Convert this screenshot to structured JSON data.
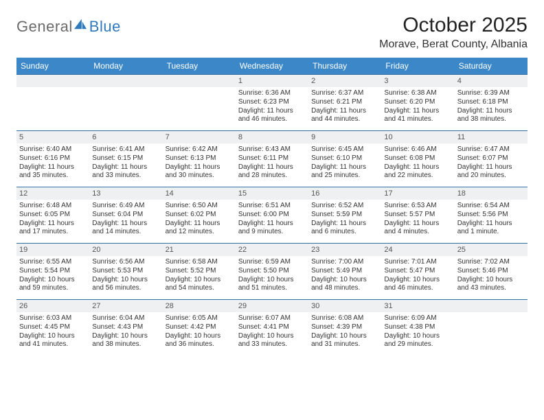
{
  "brand": {
    "part1": "General",
    "part2": "Blue"
  },
  "title": "October 2025",
  "location": "Morave, Berat County, Albania",
  "colors": {
    "header_bg": "#3b87c8",
    "header_text": "#ffffff",
    "daynum_bg": "#eef0f2",
    "border": "#2f6fa6",
    "logo_gray": "#6a6a6a",
    "logo_blue": "#2f79bd",
    "text": "#333333",
    "background": "#ffffff"
  },
  "typography": {
    "title_fontsize": 30,
    "location_fontsize": 16,
    "dayhead_fontsize": 12,
    "daynum_fontsize": 11,
    "cell_fontsize": 10
  },
  "day_labels": [
    "Sunday",
    "Monday",
    "Tuesday",
    "Wednesday",
    "Thursday",
    "Friday",
    "Saturday"
  ],
  "weeks": [
    [
      {
        "num": "",
        "sunrise": "",
        "sunset": "",
        "daylight": ""
      },
      {
        "num": "",
        "sunrise": "",
        "sunset": "",
        "daylight": ""
      },
      {
        "num": "",
        "sunrise": "",
        "sunset": "",
        "daylight": ""
      },
      {
        "num": "1",
        "sunrise": "Sunrise: 6:36 AM",
        "sunset": "Sunset: 6:23 PM",
        "daylight": "Daylight: 11 hours and 46 minutes."
      },
      {
        "num": "2",
        "sunrise": "Sunrise: 6:37 AM",
        "sunset": "Sunset: 6:21 PM",
        "daylight": "Daylight: 11 hours and 44 minutes."
      },
      {
        "num": "3",
        "sunrise": "Sunrise: 6:38 AM",
        "sunset": "Sunset: 6:20 PM",
        "daylight": "Daylight: 11 hours and 41 minutes."
      },
      {
        "num": "4",
        "sunrise": "Sunrise: 6:39 AM",
        "sunset": "Sunset: 6:18 PM",
        "daylight": "Daylight: 11 hours and 38 minutes."
      }
    ],
    [
      {
        "num": "5",
        "sunrise": "Sunrise: 6:40 AM",
        "sunset": "Sunset: 6:16 PM",
        "daylight": "Daylight: 11 hours and 35 minutes."
      },
      {
        "num": "6",
        "sunrise": "Sunrise: 6:41 AM",
        "sunset": "Sunset: 6:15 PM",
        "daylight": "Daylight: 11 hours and 33 minutes."
      },
      {
        "num": "7",
        "sunrise": "Sunrise: 6:42 AM",
        "sunset": "Sunset: 6:13 PM",
        "daylight": "Daylight: 11 hours and 30 minutes."
      },
      {
        "num": "8",
        "sunrise": "Sunrise: 6:43 AM",
        "sunset": "Sunset: 6:11 PM",
        "daylight": "Daylight: 11 hours and 28 minutes."
      },
      {
        "num": "9",
        "sunrise": "Sunrise: 6:45 AM",
        "sunset": "Sunset: 6:10 PM",
        "daylight": "Daylight: 11 hours and 25 minutes."
      },
      {
        "num": "10",
        "sunrise": "Sunrise: 6:46 AM",
        "sunset": "Sunset: 6:08 PM",
        "daylight": "Daylight: 11 hours and 22 minutes."
      },
      {
        "num": "11",
        "sunrise": "Sunrise: 6:47 AM",
        "sunset": "Sunset: 6:07 PM",
        "daylight": "Daylight: 11 hours and 20 minutes."
      }
    ],
    [
      {
        "num": "12",
        "sunrise": "Sunrise: 6:48 AM",
        "sunset": "Sunset: 6:05 PM",
        "daylight": "Daylight: 11 hours and 17 minutes."
      },
      {
        "num": "13",
        "sunrise": "Sunrise: 6:49 AM",
        "sunset": "Sunset: 6:04 PM",
        "daylight": "Daylight: 11 hours and 14 minutes."
      },
      {
        "num": "14",
        "sunrise": "Sunrise: 6:50 AM",
        "sunset": "Sunset: 6:02 PM",
        "daylight": "Daylight: 11 hours and 12 minutes."
      },
      {
        "num": "15",
        "sunrise": "Sunrise: 6:51 AM",
        "sunset": "Sunset: 6:00 PM",
        "daylight": "Daylight: 11 hours and 9 minutes."
      },
      {
        "num": "16",
        "sunrise": "Sunrise: 6:52 AM",
        "sunset": "Sunset: 5:59 PM",
        "daylight": "Daylight: 11 hours and 6 minutes."
      },
      {
        "num": "17",
        "sunrise": "Sunrise: 6:53 AM",
        "sunset": "Sunset: 5:57 PM",
        "daylight": "Daylight: 11 hours and 4 minutes."
      },
      {
        "num": "18",
        "sunrise": "Sunrise: 6:54 AM",
        "sunset": "Sunset: 5:56 PM",
        "daylight": "Daylight: 11 hours and 1 minute."
      }
    ],
    [
      {
        "num": "19",
        "sunrise": "Sunrise: 6:55 AM",
        "sunset": "Sunset: 5:54 PM",
        "daylight": "Daylight: 10 hours and 59 minutes."
      },
      {
        "num": "20",
        "sunrise": "Sunrise: 6:56 AM",
        "sunset": "Sunset: 5:53 PM",
        "daylight": "Daylight: 10 hours and 56 minutes."
      },
      {
        "num": "21",
        "sunrise": "Sunrise: 6:58 AM",
        "sunset": "Sunset: 5:52 PM",
        "daylight": "Daylight: 10 hours and 54 minutes."
      },
      {
        "num": "22",
        "sunrise": "Sunrise: 6:59 AM",
        "sunset": "Sunset: 5:50 PM",
        "daylight": "Daylight: 10 hours and 51 minutes."
      },
      {
        "num": "23",
        "sunrise": "Sunrise: 7:00 AM",
        "sunset": "Sunset: 5:49 PM",
        "daylight": "Daylight: 10 hours and 48 minutes."
      },
      {
        "num": "24",
        "sunrise": "Sunrise: 7:01 AM",
        "sunset": "Sunset: 5:47 PM",
        "daylight": "Daylight: 10 hours and 46 minutes."
      },
      {
        "num": "25",
        "sunrise": "Sunrise: 7:02 AM",
        "sunset": "Sunset: 5:46 PM",
        "daylight": "Daylight: 10 hours and 43 minutes."
      }
    ],
    [
      {
        "num": "26",
        "sunrise": "Sunrise: 6:03 AM",
        "sunset": "Sunset: 4:45 PM",
        "daylight": "Daylight: 10 hours and 41 minutes."
      },
      {
        "num": "27",
        "sunrise": "Sunrise: 6:04 AM",
        "sunset": "Sunset: 4:43 PM",
        "daylight": "Daylight: 10 hours and 38 minutes."
      },
      {
        "num": "28",
        "sunrise": "Sunrise: 6:05 AM",
        "sunset": "Sunset: 4:42 PM",
        "daylight": "Daylight: 10 hours and 36 minutes."
      },
      {
        "num": "29",
        "sunrise": "Sunrise: 6:07 AM",
        "sunset": "Sunset: 4:41 PM",
        "daylight": "Daylight: 10 hours and 33 minutes."
      },
      {
        "num": "30",
        "sunrise": "Sunrise: 6:08 AM",
        "sunset": "Sunset: 4:39 PM",
        "daylight": "Daylight: 10 hours and 31 minutes."
      },
      {
        "num": "31",
        "sunrise": "Sunrise: 6:09 AM",
        "sunset": "Sunset: 4:38 PM",
        "daylight": "Daylight: 10 hours and 29 minutes."
      },
      {
        "num": "",
        "sunrise": "",
        "sunset": "",
        "daylight": ""
      }
    ]
  ]
}
